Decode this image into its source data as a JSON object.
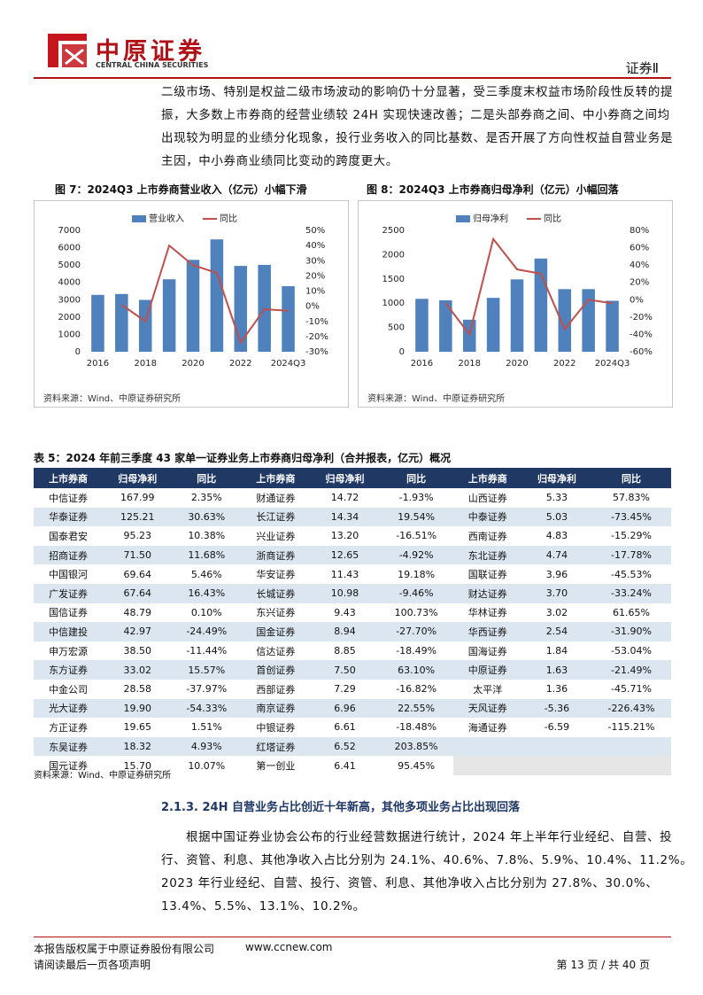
{
  "header": {
    "logo_cn": "中原证券",
    "logo_en": "CENTRAL CHINA SECURITIES",
    "section": "证券Ⅱ"
  },
  "intro_lines": [
    "二级市场、特别是权益二级市场波动的影响仍十分显著，受三季度末权益市场阶段性反转的提",
    "振，大多数上市券商的经营业绩较 24H 实现快速改善；二是头部券商之间、中小券商之间均",
    "出现较为明显的业绩分化现象，投行业务收入的同比基数、是否开展了方向性权益自营业务是",
    "主因，中小券商业绩同比变动的跨度更大。"
  ],
  "figures": [
    {
      "title": "图 7：2024Q3 上市券商营业收入（亿元）小幅下滑",
      "source": "资料来源：Wind、中原证券研究所",
      "chart_data": {
        "type": "bar-line",
        "categories": [
          "2016",
          null,
          "2018",
          null,
          "2020",
          null,
          "2022",
          null,
          "2024Q3"
        ],
        "series": [
          {
            "name": "营业收入",
            "color": "#4f81bd",
            "values": [
              3280,
              3330,
              2990,
              4180,
              5300,
              6480,
              4950,
              5010,
              3780
            ]
          },
          {
            "name": "同比",
            "color": "#c0504d",
            "axis": "y2",
            "values": [
              null,
              1,
              -10,
              40,
              27,
              22,
              -24,
              -2,
              -3
            ]
          }
        ],
        "ylim": [
          0,
          7000
        ],
        "yticks": [
          0,
          1000,
          2000,
          3000,
          4000,
          5000,
          6000,
          7000
        ],
        "y2lim": [
          -30,
          50
        ],
        "y2ticks": [
          {
            "value": -30,
            "label": "-30%"
          },
          {
            "value": -20,
            "label": "-20%"
          },
          {
            "value": -10,
            "label": "-10%"
          },
          {
            "value": 0,
            "label": "0%"
          },
          {
            "value": 10,
            "label": "10%"
          },
          {
            "value": 20,
            "label": "20%"
          },
          {
            "value": 30,
            "label": "30%"
          },
          {
            "value": 40,
            "label": "40%"
          },
          {
            "value": 50,
            "label": "50%"
          }
        ]
      }
    },
    {
      "title": "图 8：2024Q3 上市券商归母净利（亿元）小幅回落",
      "source": "资料来源：Wind、中原证券研究所",
      "chart_data": {
        "type": "bar-line",
        "categories": [
          "2016",
          null,
          "2018",
          null,
          "2020",
          null,
          "2022",
          null,
          "2024Q3"
        ],
        "series": [
          {
            "name": "归母净利",
            "color": "#4f81bd",
            "values": [
              1090,
              1060,
              660,
              1110,
              1490,
              1920,
              1290,
              1290,
              1050
            ]
          },
          {
            "name": "同比",
            "color": "#c0504d",
            "axis": "y2",
            "values": [
              null,
              -4,
              -40,
              70,
              35,
              30,
              -34,
              0,
              -4
            ]
          }
        ],
        "ylim": [
          0,
          2500
        ],
        "yticks": [
          0,
          500,
          1000,
          1500,
          2000,
          2500
        ],
        "y2lim": [
          -60,
          80
        ],
        "y2ticks": [
          {
            "value": -60,
            "label": "-60%"
          },
          {
            "value": -40,
            "label": "-40%"
          },
          {
            "value": -20,
            "label": "-20%"
          },
          {
            "value": 0,
            "label": "0%"
          },
          {
            "value": 20,
            "label": "20%"
          },
          {
            "value": 40,
            "label": "40%"
          },
          {
            "value": 60,
            "label": "60%"
          },
          {
            "value": 80,
            "label": "80%"
          }
        ]
      }
    }
  ],
  "table": {
    "title": "表 5：2024 年前三季度 43 家单一证券业务上市券商归母净利（合并报表，亿元）概况",
    "header": [
      "上市券商",
      "归母净利",
      "同比"
    ],
    "groups": [
      {
        "rows": [
          [
            "中信证券",
            "167.99",
            "2.35%"
          ],
          [
            "华泰证券",
            "125.21",
            "30.63%"
          ],
          [
            "国泰君安",
            "95.23",
            "10.38%"
          ],
          [
            "招商证券",
            "71.50",
            "11.68%"
          ],
          [
            "中国银河",
            "69.64",
            "5.46%"
          ],
          [
            "广发证券",
            "67.64",
            "16.43%"
          ],
          [
            "国信证券",
            "48.79",
            "0.10%"
          ],
          [
            "中信建投",
            "42.97",
            "-24.49%"
          ],
          [
            "申万宏源",
            "38.50",
            "-11.44%"
          ],
          [
            "东方证券",
            "33.02",
            "15.57%"
          ],
          [
            "中金公司",
            "28.58",
            "-37.97%"
          ],
          [
            "光大证券",
            "19.90",
            "-54.33%"
          ],
          [
            "方正证券",
            "19.65",
            "1.51%"
          ],
          [
            "东吴证券",
            "18.32",
            "4.93%"
          ],
          [
            "国元证券",
            "15.70",
            "10.07%"
          ]
        ]
      },
      {
        "rows": [
          [
            "财通证券",
            "14.72",
            "-1.93%"
          ],
          [
            "长江证券",
            "14.34",
            "19.54%"
          ],
          [
            "兴业证券",
            "13.20",
            "-16.51%"
          ],
          [
            "浙商证券",
            "12.65",
            "-4.92%"
          ],
          [
            "华安证券",
            "11.43",
            "19.18%"
          ],
          [
            "长城证券",
            "10.98",
            "-9.46%"
          ],
          [
            "东兴证券",
            "9.43",
            "100.73%"
          ],
          [
            "国金证券",
            "8.94",
            "-27.70%"
          ],
          [
            "信达证券",
            "8.85",
            "-18.49%"
          ],
          [
            "首创证券",
            "7.50",
            "63.10%"
          ],
          [
            "西部证券",
            "7.29",
            "-16.82%"
          ],
          [
            "南京证券",
            "6.96",
            "22.55%"
          ],
          [
            "中银证券",
            "6.61",
            "-18.48%"
          ],
          [
            "红塔证券",
            "6.52",
            "203.85%"
          ],
          [
            "第一创业",
            "6.41",
            "95.45%"
          ]
        ]
      },
      {
        "rows": [
          [
            "山西证券",
            "5.33",
            "57.83%"
          ],
          [
            "中泰证券",
            "5.03",
            "-73.45%"
          ],
          [
            "西南证券",
            "4.83",
            "-15.29%"
          ],
          [
            "东北证券",
            "4.74",
            "-17.78%"
          ],
          [
            "国联证券",
            "3.96",
            "-45.53%"
          ],
          [
            "财达证券",
            "3.70",
            "-33.24%"
          ],
          [
            "华林证券",
            "3.02",
            "61.65%"
          ],
          [
            "华西证券",
            "2.54",
            "-31.90%"
          ],
          [
            "国海证券",
            "1.84",
            "-53.04%"
          ],
          [
            "中原证券",
            "1.63",
            "-21.49%"
          ],
          [
            "太平洋",
            "1.36",
            "-45.71%"
          ],
          [
            "天风证券",
            "-5.36",
            "-226.43%"
          ],
          [
            "海通证券",
            "-6.59",
            "-115.21%"
          ]
        ]
      }
    ],
    "source": "资料来源：Wind、中原证券研究所"
  },
  "section": {
    "heading": "2.1.3. 24H 自营业务占比创近十年新高，其他多项业务占比出现回落",
    "lines": [
      "根据中国证券业协会公布的行业经营数据进行统计，2024 年上半年行业经纪、自营、投",
      "行、资管、利息、其他净收入占比分别为 24.1%、40.6%、7.8%、5.9%、10.4%、11.2%。",
      "2023 年行业经纪、自营、投行、资管、利息、其他净收入占比分别为 27.8%、30.0%、",
      "13.4%、5.5%、13.1%、10.2%。"
    ]
  },
  "footer": {
    "copyright": "本报告版权属于中原证券股份有限公司",
    "url": "www.ccnew.com",
    "notice": "请阅读最后一页各项声明",
    "page": "第 13 页 / 共 40 页"
  }
}
